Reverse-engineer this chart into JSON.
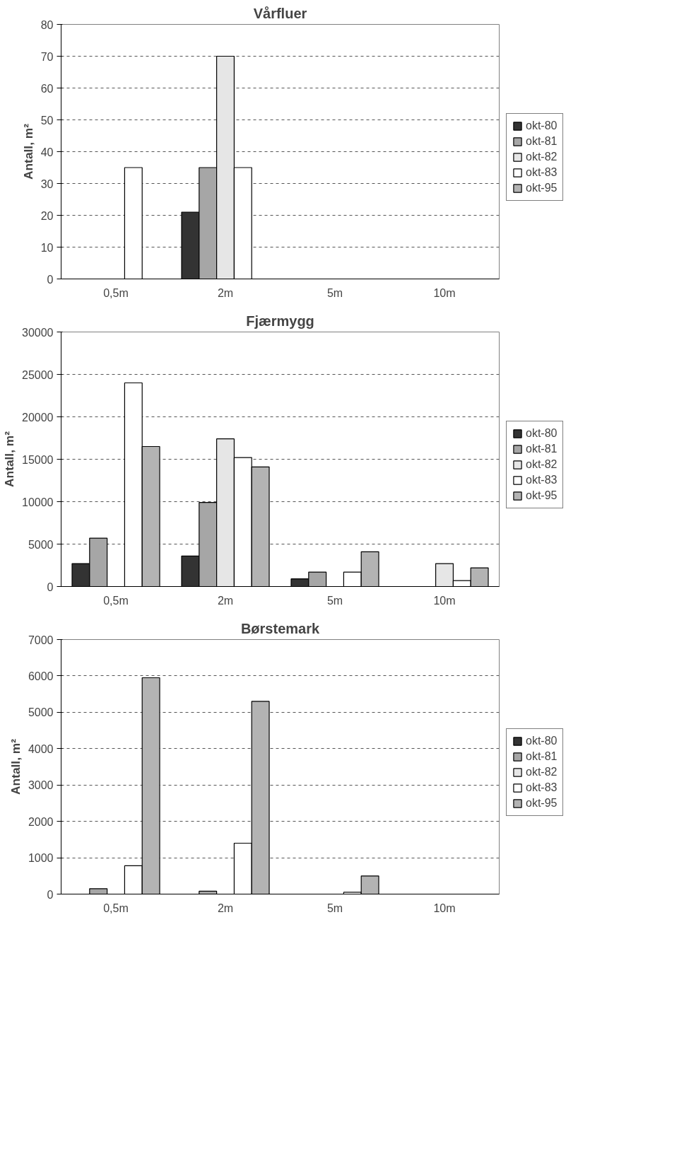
{
  "chart_data": [
    {
      "type": "bar",
      "title": "Vårfluer",
      "ylabel": "Antall, m²",
      "categories": [
        "0,5m",
        "2m",
        "5m",
        "10m"
      ],
      "ylim": [
        0,
        80
      ],
      "yticks": [
        0,
        10,
        20,
        30,
        40,
        50,
        60,
        70,
        80
      ],
      "grid": "y",
      "legend": "right",
      "series": [
        {
          "name": "okt-80",
          "color": "#333333",
          "values": [
            null,
            21,
            null,
            null
          ]
        },
        {
          "name": "okt-81",
          "color": "#a6a6a6",
          "values": [
            null,
            35,
            null,
            null
          ]
        },
        {
          "name": "okt-82",
          "color": "#e6e6e6",
          "values": [
            null,
            70,
            null,
            null
          ]
        },
        {
          "name": "okt-83",
          "color": "#ffffff",
          "values": [
            35,
            35,
            null,
            null
          ]
        },
        {
          "name": "okt-95",
          "color": "#b3b3b3",
          "values": [
            null,
            null,
            null,
            null
          ]
        }
      ]
    },
    {
      "type": "bar",
      "title": "Fjærmygg",
      "ylabel": "Antall, m²",
      "categories": [
        "0,5m",
        "2m",
        "5m",
        "10m"
      ],
      "ylim": [
        0,
        30000
      ],
      "yticks": [
        0,
        5000,
        10000,
        15000,
        20000,
        25000,
        30000
      ],
      "grid": "y",
      "legend": "right",
      "series": [
        {
          "name": "okt-80",
          "color": "#333333",
          "values": [
            2700,
            3600,
            900,
            null
          ]
        },
        {
          "name": "okt-81",
          "color": "#a6a6a6",
          "values": [
            5700,
            9900,
            1700,
            null
          ]
        },
        {
          "name": "okt-82",
          "color": "#e6e6e6",
          "values": [
            null,
            17400,
            null,
            2700
          ]
        },
        {
          "name": "okt-83",
          "color": "#ffffff",
          "values": [
            24000,
            15200,
            1700,
            700
          ]
        },
        {
          "name": "okt-95",
          "color": "#b3b3b3",
          "values": [
            16500,
            14100,
            4100,
            2200
          ]
        }
      ]
    },
    {
      "type": "bar",
      "title": "Børstemark",
      "ylabel": "Antall, m²",
      "categories": [
        "0,5m",
        "2m",
        "5m",
        "10m"
      ],
      "ylim": [
        0,
        7000
      ],
      "yticks": [
        0,
        1000,
        2000,
        3000,
        4000,
        5000,
        6000,
        7000
      ],
      "grid": "y",
      "legend": "right",
      "series": [
        {
          "name": "okt-80",
          "color": "#333333",
          "values": [
            null,
            null,
            null,
            null
          ]
        },
        {
          "name": "okt-81",
          "color": "#a6a6a6",
          "values": [
            150,
            80,
            null,
            null
          ]
        },
        {
          "name": "okt-82",
          "color": "#e6e6e6",
          "values": [
            null,
            null,
            null,
            null
          ]
        },
        {
          "name": "okt-83",
          "color": "#ffffff",
          "values": [
            780,
            1400,
            50,
            null
          ]
        },
        {
          "name": "okt-95",
          "color": "#b3b3b3",
          "values": [
            5950,
            5300,
            500,
            null
          ]
        }
      ]
    }
  ]
}
